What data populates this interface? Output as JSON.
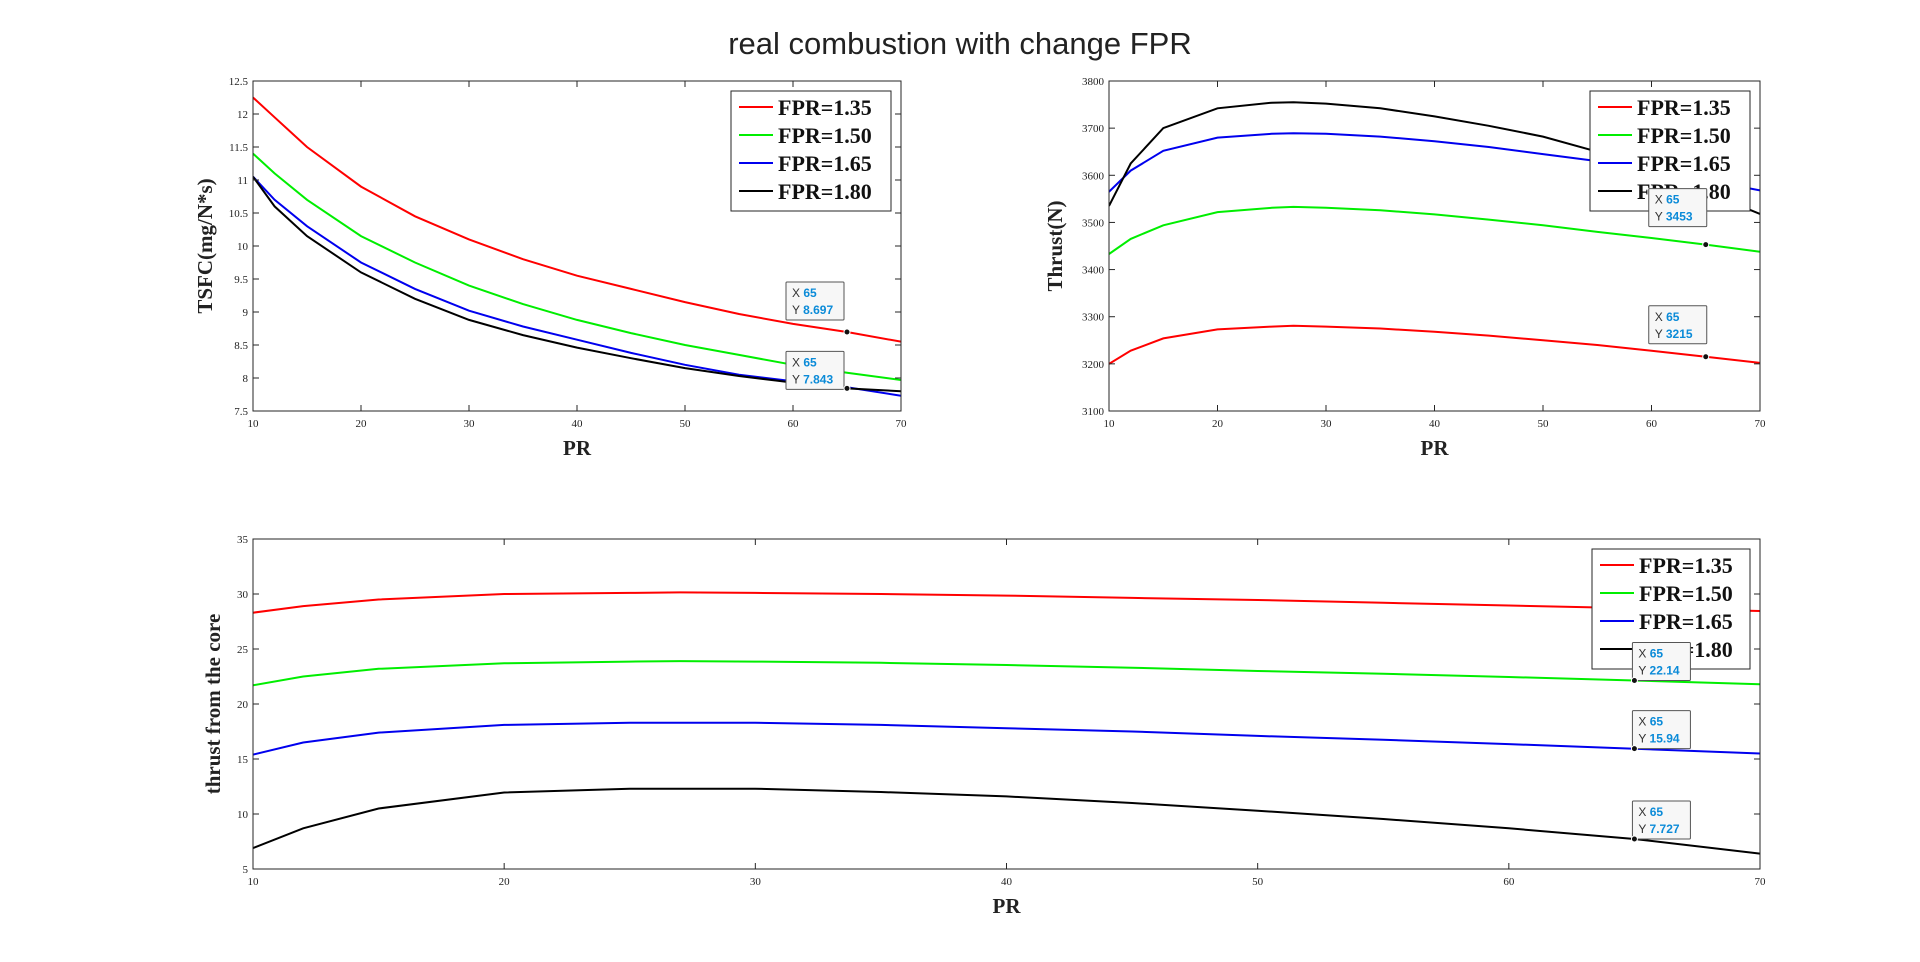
{
  "figure": {
    "title": "real combustion with change FPR"
  },
  "chart_data": [
    {
      "type": "line",
      "xlabel": "PR",
      "ylabel": "TSFC(mg/N*s)",
      "xlim": [
        10,
        70
      ],
      "ylim": [
        7.5,
        12.5
      ],
      "xticks": [
        10,
        20,
        30,
        40,
        50,
        60,
        70
      ],
      "yticks": [
        "7.5",
        "8",
        "8.5",
        "9",
        "9.5",
        "10",
        "10.5",
        "11",
        "11.5",
        "12",
        "12.5"
      ],
      "x": [
        10,
        12,
        15,
        20,
        25,
        30,
        35,
        40,
        45,
        50,
        55,
        60,
        65,
        70
      ],
      "series": [
        {
          "name": "FPR=1.35",
          "color": "#ff0000",
          "values": [
            12.25,
            11.95,
            11.5,
            10.9,
            10.45,
            10.1,
            9.8,
            9.55,
            9.35,
            9.15,
            8.97,
            8.82,
            8.697,
            8.55
          ]
        },
        {
          "name": "FPR=1.50",
          "color": "#00ee00",
          "values": [
            11.4,
            11.1,
            10.7,
            10.15,
            9.75,
            9.4,
            9.12,
            8.88,
            8.68,
            8.5,
            8.35,
            8.2,
            8.08,
            7.97
          ]
        },
        {
          "name": "FPR=1.65",
          "color": "#0000ee",
          "values": [
            11.05,
            10.7,
            10.3,
            9.75,
            9.35,
            9.02,
            8.78,
            8.58,
            8.38,
            8.2,
            8.05,
            7.95,
            7.86,
            7.73
          ]
        },
        {
          "name": "FPR=1.80",
          "color": "#000000",
          "values": [
            11.05,
            10.6,
            10.15,
            9.6,
            9.2,
            8.88,
            8.65,
            8.46,
            8.3,
            8.15,
            8.03,
            7.93,
            7.843,
            7.8
          ]
        }
      ],
      "legend": "top-right",
      "datatips": [
        {
          "x": "65",
          "y": "8.697"
        },
        {
          "x": "65",
          "y": "7.843"
        }
      ]
    },
    {
      "type": "line",
      "xlabel": "PR",
      "ylabel": "Thrust(N)",
      "xlim": [
        10,
        70
      ],
      "ylim": [
        3100,
        3800
      ],
      "xticks": [
        10,
        20,
        30,
        40,
        50,
        60,
        70
      ],
      "yticks": [
        "3100",
        "3200",
        "3300",
        "3400",
        "3500",
        "3600",
        "3700",
        "3800"
      ],
      "x": [
        10,
        12,
        15,
        20,
        25,
        27,
        30,
        35,
        40,
        45,
        50,
        55,
        60,
        65,
        70
      ],
      "series": [
        {
          "name": "FPR=1.35",
          "color": "#ff0000",
          "values": [
            3200,
            3228,
            3254,
            3273,
            3279,
            3281,
            3279,
            3275,
            3268,
            3260,
            3250,
            3240,
            3228,
            3215,
            3202
          ]
        },
        {
          "name": "FPR=1.50",
          "color": "#00ee00",
          "values": [
            3433,
            3465,
            3494,
            3522,
            3531,
            3533,
            3531,
            3526,
            3517,
            3506,
            3494,
            3480,
            3467,
            3453,
            3438
          ]
        },
        {
          "name": "FPR=1.65",
          "color": "#0000ee",
          "values": [
            3565,
            3610,
            3652,
            3680,
            3688,
            3689,
            3688,
            3682,
            3672,
            3660,
            3645,
            3630,
            3610,
            3590,
            3568
          ]
        },
        {
          "name": "FPR=1.80",
          "color": "#000000",
          "values": [
            3535,
            3625,
            3700,
            3742,
            3754,
            3755,
            3752,
            3742,
            3725,
            3705,
            3682,
            3650,
            3610,
            3565,
            3518
          ]
        }
      ],
      "legend": "top-right",
      "datatips": [
        {
          "x": "65",
          "y": "3453"
        },
        {
          "x": "65",
          "y": "3215"
        }
      ]
    },
    {
      "type": "line",
      "xlabel": "PR",
      "ylabel": "thrust from the core",
      "xlim": [
        10,
        70
      ],
      "ylim": [
        5,
        35
      ],
      "xticks": [
        10,
        20,
        30,
        40,
        50,
        60,
        70
      ],
      "yticks": [
        "5",
        "10",
        "15",
        "20",
        "25",
        "30",
        "35"
      ],
      "x": [
        10,
        12,
        15,
        20,
        25,
        27,
        30,
        35,
        40,
        45,
        50,
        55,
        60,
        65,
        70
      ],
      "series": [
        {
          "name": "FPR=1.35",
          "color": "#ff0000",
          "values": [
            28.3,
            28.9,
            29.5,
            30.0,
            30.1,
            30.15,
            30.1,
            30.0,
            29.85,
            29.65,
            29.45,
            29.2,
            28.95,
            28.7,
            28.45
          ]
        },
        {
          "name": "FPR=1.50",
          "color": "#00ee00",
          "values": [
            21.7,
            22.5,
            23.2,
            23.7,
            23.85,
            23.9,
            23.85,
            23.75,
            23.55,
            23.3,
            23.0,
            22.75,
            22.45,
            22.14,
            21.8
          ]
        },
        {
          "name": "FPR=1.65",
          "color": "#0000ee",
          "values": [
            15.4,
            16.5,
            17.4,
            18.1,
            18.3,
            18.3,
            18.3,
            18.1,
            17.8,
            17.5,
            17.1,
            16.75,
            16.35,
            15.94,
            15.5
          ]
        },
        {
          "name": "FPR=1.80",
          "color": "#000000",
          "values": [
            6.9,
            8.7,
            10.5,
            11.95,
            12.3,
            12.3,
            12.3,
            12.0,
            11.6,
            11.0,
            10.3,
            9.55,
            8.7,
            7.727,
            6.4
          ]
        }
      ],
      "legend": "top-right",
      "datatips": [
        {
          "x": "65",
          "y": "22.14"
        },
        {
          "x": "65",
          "y": "15.94"
        },
        {
          "x": "65",
          "y": "7.727"
        }
      ]
    }
  ]
}
